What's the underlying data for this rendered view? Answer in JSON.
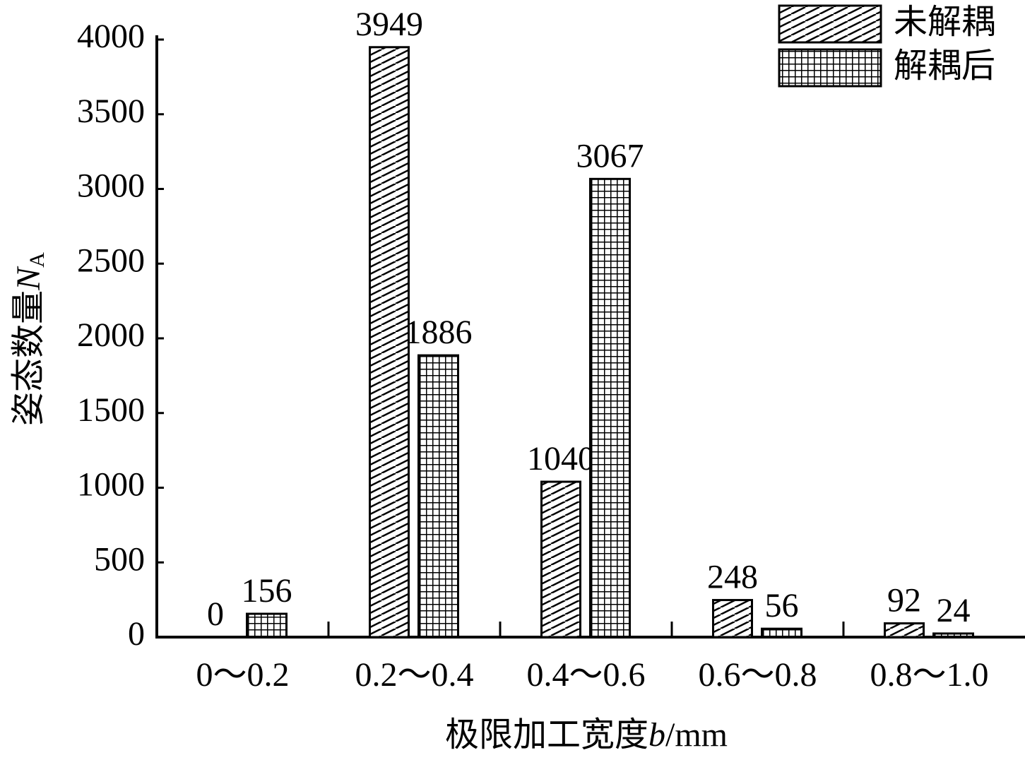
{
  "chart_data": {
    "type": "bar",
    "ylabel": "姿态数量",
    "ylabel_symbol": "N",
    "ylabel_subscript": "A",
    "xlabel": "极限加工宽度",
    "xlabel_symbol": "b",
    "xlabel_unit": "/mm",
    "categories": [
      "0～0.2",
      "0.2～0.4",
      "0.4～0.6",
      "0.6～0.8",
      "0.8～1.0"
    ],
    "series": [
      {
        "name": "未解耦",
        "color": "#000000",
        "hatch": "diagonal",
        "values": [
          0,
          3949,
          1040,
          248,
          92
        ]
      },
      {
        "name": "解耦后",
        "color": "#000000",
        "hatch": "grid",
        "values": [
          156,
          1886,
          3067,
          56,
          24
        ]
      }
    ],
    "ylim": [
      0,
      4000
    ],
    "yticks": [
      0,
      500,
      1000,
      1500,
      2000,
      2500,
      3000,
      3500,
      4000
    ],
    "legend": "upper-right"
  }
}
